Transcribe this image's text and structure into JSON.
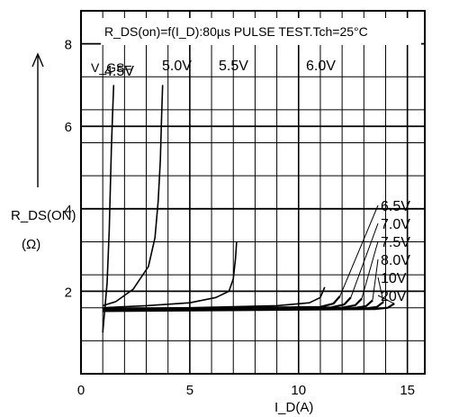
{
  "chart_data": {
    "type": "line",
    "title": "R_DS(on)=f(I_D):80µs PULSE TEST.Tch=25°C",
    "xlabel": "I_D(A)",
    "ylabel": "R_DS(ON)",
    "ylabel_unit": "(Ω)",
    "xlim": [
      0,
      15.8
    ],
    "ylim": [
      0,
      8.8
    ],
    "x_ticks": [
      0,
      5,
      10,
      15
    ],
    "y_ticks": [
      2,
      4,
      6,
      8
    ],
    "grid": true,
    "vgs_prefix": "V_GS=",
    "series": [
      {
        "name": "4.5V",
        "x": [
          1.0,
          1.2,
          1.3,
          1.35,
          1.4,
          1.45,
          1.5
        ],
        "y": [
          1.0,
          2.2,
          3.5,
          4.5,
          5.5,
          6.3,
          7.0
        ]
      },
      {
        "name": "5.0V",
        "x": [
          1.0,
          1.6,
          2.4,
          3.1,
          3.4,
          3.55,
          3.65,
          3.7,
          3.75
        ],
        "y": [
          1.65,
          1.75,
          2.05,
          2.6,
          3.3,
          4.2,
          5.2,
          6.2,
          7.0
        ]
      },
      {
        "name": "5.5V",
        "x": [
          1.0,
          3.0,
          5.0,
          6.2,
          6.8,
          7.0,
          7.1,
          7.15
        ],
        "y": [
          1.6,
          1.65,
          1.72,
          1.85,
          2.0,
          2.3,
          2.8,
          3.2
        ]
      },
      {
        "name": "6.0V",
        "x": [
          1.0,
          5.0,
          9.0,
          10.5,
          11.0,
          11.2
        ],
        "y": [
          1.58,
          1.6,
          1.65,
          1.72,
          1.85,
          2.1
        ]
      },
      {
        "name": "6.5V",
        "x": [
          1.0,
          6.0,
          11.0,
          11.6,
          11.9
        ],
        "y": [
          1.57,
          1.59,
          1.62,
          1.7,
          1.88
        ]
      },
      {
        "name": "7.0V",
        "x": [
          1.0,
          6.0,
          11.5,
          12.1,
          12.4
        ],
        "y": [
          1.56,
          1.58,
          1.61,
          1.68,
          1.85
        ]
      },
      {
        "name": "7.5V",
        "x": [
          1.0,
          6.0,
          12.0,
          12.6,
          12.9
        ],
        "y": [
          1.55,
          1.57,
          1.6,
          1.66,
          1.82
        ]
      },
      {
        "name": "8.0V",
        "x": [
          1.0,
          6.0,
          12.5,
          13.1,
          13.4
        ],
        "y": [
          1.54,
          1.56,
          1.59,
          1.64,
          1.78
        ]
      },
      {
        "name": "10V",
        "x": [
          1.0,
          6.0,
          13.0,
          13.6,
          13.9
        ],
        "y": [
          1.53,
          1.55,
          1.58,
          1.62,
          1.74
        ]
      },
      {
        "name": "20V",
        "x": [
          1.0,
          6.0,
          13.5,
          14.1,
          14.4
        ],
        "y": [
          1.52,
          1.54,
          1.57,
          1.6,
          1.7
        ]
      }
    ],
    "legend_order": [
      "6.5V",
      "7.0V",
      "7.5V",
      "8.0V",
      "10V",
      "20V"
    ]
  }
}
